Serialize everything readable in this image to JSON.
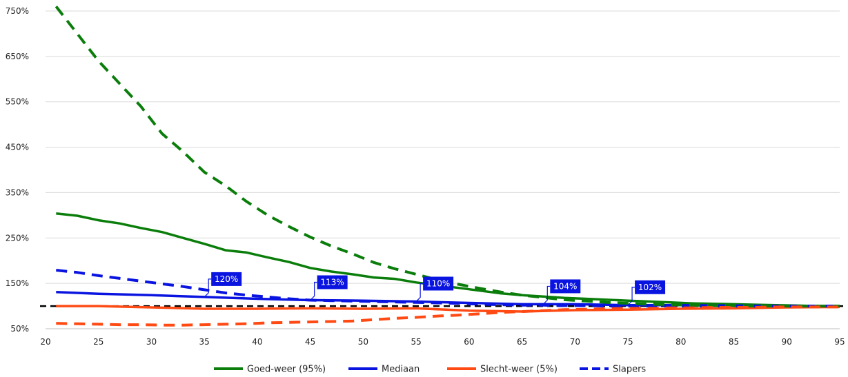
{
  "chart_data": {
    "type": "line",
    "xlim": [
      20,
      95
    ],
    "ylim": [
      50,
      750
    ],
    "x_ticks": [
      "20",
      "25",
      "30",
      "35",
      "40",
      "45",
      "50",
      "55",
      "60",
      "65",
      "70",
      "75",
      "80",
      "85",
      "90",
      "95"
    ],
    "y_ticks": [
      "50%",
      "150%",
      "250%",
      "350%",
      "450%",
      "550%",
      "650%",
      "750%"
    ],
    "y_tick_values": [
      50,
      150,
      250,
      350,
      450,
      550,
      650,
      750
    ],
    "x_tick_values": [
      20,
      25,
      30,
      35,
      40,
      45,
      50,
      55,
      60,
      65,
      70,
      75,
      80,
      85,
      90,
      95
    ],
    "grid": "horizontal",
    "legend_position": "bottom",
    "reference_line": {
      "y": 100,
      "style": "dashed",
      "color": "#000000"
    },
    "series": [
      {
        "name": "Goed-weer (95%)",
        "color": "#0a7d0a",
        "dash": false,
        "x": [
          21,
          23,
          25,
          27,
          29,
          31,
          33,
          35,
          37,
          39,
          41,
          43,
          45,
          47,
          49,
          51,
          53,
          55,
          57,
          59,
          61,
          63,
          65,
          67,
          69,
          71,
          73,
          75,
          77,
          79,
          81,
          83,
          85,
          87,
          89,
          91,
          93,
          95
        ],
        "y": [
          304,
          299,
          289,
          282,
          272,
          263,
          250,
          237,
          223,
          218,
          207,
          197,
          184,
          176,
          170,
          163,
          160,
          152,
          146,
          140,
          134,
          128,
          124,
          121,
          118,
          116,
          114,
          112,
          110,
          108,
          106,
          105,
          104,
          103,
          102,
          101,
          100,
          100
        ]
      },
      {
        "name": "Mediaan",
        "color": "#0a14e0",
        "dash": false,
        "x": [
          21,
          25,
          30,
          35,
          40,
          45,
          50,
          55,
          60,
          65,
          70,
          75,
          80,
          85,
          90,
          95
        ],
        "y": [
          131,
          127,
          124,
          120,
          116,
          113,
          112,
          110,
          107,
          104,
          104,
          102,
          102,
          101,
          100,
          100
        ]
      },
      {
        "name": "Slecht-weer (5%)",
        "color": "#ff4a14",
        "dash": false,
        "x": [
          21,
          25,
          30,
          35,
          40,
          45,
          50,
          55,
          60,
          65,
          70,
          75,
          80,
          85,
          90,
          95
        ],
        "y": [
          100,
          100,
          97,
          94,
          94,
          95,
          94,
          95,
          90,
          88,
          91,
          92,
          94,
          95,
          97,
          98
        ]
      },
      {
        "name": "Slapers",
        "color": "#0a14e0",
        "dash": true,
        "x": [
          21,
          23,
          25,
          27,
          29,
          31,
          33,
          35,
          37,
          39,
          41,
          43,
          45,
          47,
          49,
          51,
          53,
          55,
          57,
          59,
          61,
          63,
          65,
          67,
          69,
          71,
          73,
          75,
          77,
          79,
          81,
          83,
          85,
          87,
          89,
          91,
          93,
          95
        ],
        "y": [
          179,
          174,
          167,
          161,
          155,
          149,
          143,
          136,
          129,
          124,
          120,
          116,
          113,
          112,
          111,
          110,
          109,
          108,
          107,
          106,
          104,
          103,
          102,
          102,
          101,
          101,
          100,
          100,
          100,
          100,
          100,
          100,
          100,
          100,
          100,
          100,
          100,
          100
        ]
      },
      {
        "name": "",
        "color": "#0a7d0a",
        "dash": true,
        "x": [
          21,
          23,
          25,
          27,
          29,
          31,
          33,
          35,
          37,
          39,
          41,
          43,
          45,
          47,
          49,
          51,
          53,
          55,
          57,
          59,
          61,
          63,
          65,
          67,
          69,
          71,
          73,
          75,
          77,
          79,
          81,
          83,
          85,
          87,
          89,
          91,
          93,
          95
        ],
        "y": [
          760,
          700,
          640,
          590,
          540,
          480,
          440,
          395,
          365,
          330,
          300,
          275,
          252,
          232,
          215,
          196,
          182,
          170,
          158,
          148,
          139,
          131,
          124,
          119,
          114,
          111,
          108,
          106,
          104,
          103,
          102,
          101,
          101,
          100,
          100,
          100,
          100,
          100
        ]
      },
      {
        "name": "",
        "color": "#ff4a14",
        "dash": true,
        "x": [
          21,
          23,
          25,
          27,
          29,
          31,
          33,
          35,
          37,
          39,
          41,
          43,
          45,
          47,
          49,
          51,
          53,
          55,
          57,
          59,
          61,
          63,
          65,
          67,
          69,
          71,
          73,
          75,
          77,
          79,
          81,
          83,
          85,
          87,
          89,
          91,
          93,
          95
        ],
        "y": [
          62,
          61,
          60,
          59,
          59,
          58,
          58,
          59,
          60,
          61,
          63,
          64,
          65,
          66,
          67,
          70,
          73,
          75,
          78,
          80,
          83,
          86,
          88,
          90,
          92,
          93,
          94,
          95,
          95,
          96,
          96,
          97,
          97,
          97,
          98,
          98,
          98,
          98
        ]
      }
    ],
    "annotations": [
      {
        "text": "120%",
        "x": 35,
        "y": 120
      },
      {
        "text": "113%",
        "x": 45,
        "y": 113
      },
      {
        "text": "110%",
        "x": 55,
        "y": 110
      },
      {
        "text": "104%",
        "x": 67,
        "y": 104
      },
      {
        "text": "102%",
        "x": 75,
        "y": 102
      }
    ],
    "legend": [
      {
        "label": "Goed-weer (95%)",
        "color": "#0a7d0a",
        "dash": false
      },
      {
        "label": "Mediaan",
        "color": "#0a14e0",
        "dash": false
      },
      {
        "label": "Slecht-weer (5%)",
        "color": "#ff4a14",
        "dash": false
      },
      {
        "label": "Slapers",
        "color": "#0a14e0",
        "dash": true
      }
    ]
  }
}
